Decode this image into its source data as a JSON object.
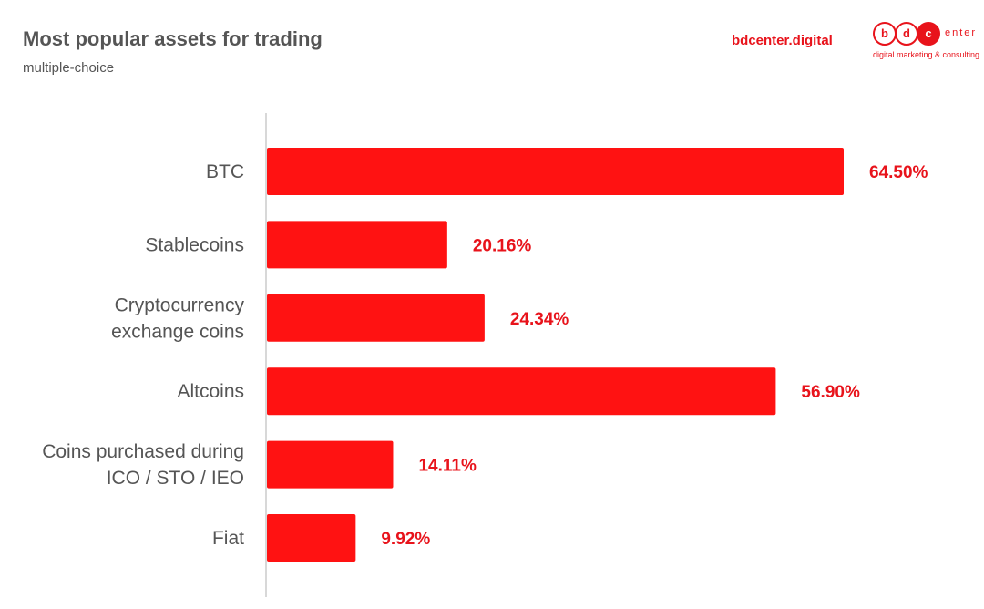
{
  "header": {
    "title": "Most popular assets for trading",
    "subtitle": "multiple-choice",
    "site": "bdcenter.digital"
  },
  "logo": {
    "letters": [
      "b",
      "d",
      "c"
    ],
    "rest": "enter",
    "tagline": "digital marketing & consulting"
  },
  "colors": {
    "bar": "#ff1212",
    "value_label": "#e8131b",
    "axis": "#cccccc"
  },
  "chart_data": {
    "type": "bar",
    "orientation": "horizontal",
    "categories": [
      [
        "BTC"
      ],
      [
        "Stablecoins"
      ],
      [
        "Cryptocurrency",
        "exchange coins"
      ],
      [
        "Altcoins"
      ],
      [
        "Coins purchased during",
        "ICO / STO / IEO"
      ],
      [
        "Fiat"
      ]
    ],
    "values": [
      64.5,
      20.16,
      24.34,
      56.9,
      14.11,
      9.92
    ],
    "value_labels": [
      "64.50%",
      "20.16%",
      "24.34%",
      "56.90%",
      "14.11%",
      "9.92%"
    ],
    "xlim": [
      0,
      64.5
    ],
    "grid": false,
    "legend": "none"
  }
}
